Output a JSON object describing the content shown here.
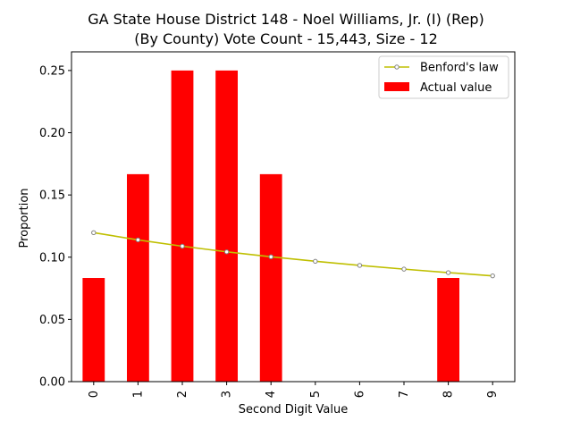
{
  "chart_data": {
    "type": "bar",
    "title": "GA State House District 148 - Noel Williams, Jr. (I) (Rep)",
    "subtitle": "(By County) Vote Count - 15,443, Size - 12",
    "xlabel": "Second Digit Value",
    "ylabel": "Proportion",
    "categories": [
      "0",
      "1",
      "2",
      "3",
      "4",
      "5",
      "6",
      "7",
      "8",
      "9"
    ],
    "ylim": [
      0,
      0.265
    ],
    "yticks": [
      "0.00",
      "0.05",
      "0.10",
      "0.15",
      "0.20",
      "0.25"
    ],
    "grid": false,
    "legend_position": "top-right",
    "series": [
      {
        "name": "Actual value",
        "kind": "bar",
        "color": "#ff0000",
        "values": [
          0.0833,
          0.1667,
          0.25,
          0.25,
          0.1667,
          0,
          0,
          0,
          0.0833,
          0
        ]
      },
      {
        "name": "Benford's law",
        "kind": "line",
        "color": "#bfbf00",
        "marker_edge": "#808080",
        "values": [
          0.1197,
          0.1139,
          0.1088,
          0.1043,
          0.1003,
          0.0967,
          0.0934,
          0.0904,
          0.0876,
          0.085
        ]
      }
    ]
  }
}
